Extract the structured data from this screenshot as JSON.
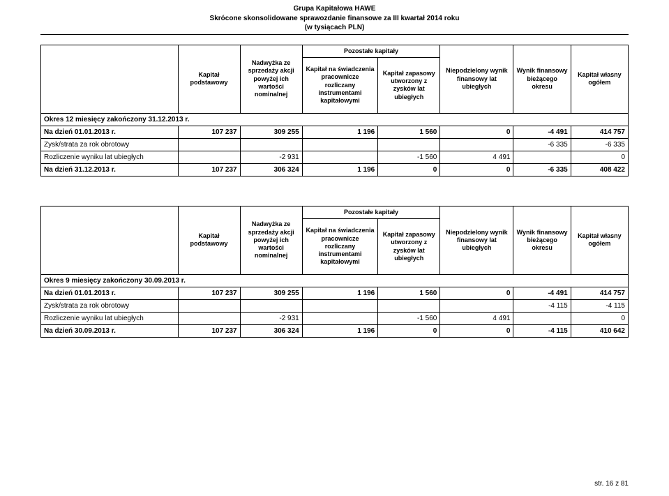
{
  "header": {
    "line1": "Grupa Kapitałowa HAWE",
    "line2": "Skrócone skonsolidowane sprawozdanie finansowe za III kwartał 2014 roku",
    "line3": "(w tysiącach PLN)"
  },
  "columns": {
    "c1": "Kapitał podstawowy",
    "c2": "Nadwyżka ze sprzedaży akcji powyżej ich wartości nominalnej",
    "group": "Pozostałe kapitały",
    "c3": "Kapitał na świadczenia pracownicze rozliczany instrumentami kapitałowymi",
    "c4": "Kapitał zapasowy utworzony z zysków lat ubiegłych",
    "c5": "Niepodzielony wynik finansowy lat ubiegłych",
    "c6": "Wynik finansowy bieżącego okresu",
    "c7": "Kapitał własny ogółem"
  },
  "table1": {
    "period": "Okres 12 miesięcy zakończony 31.12.2013 r.",
    "rows": [
      {
        "label": "Na dzień 01.01.2013 r.",
        "bold": true,
        "cells": [
          "107 237",
          "309 255",
          "1 196",
          "1 560",
          "0",
          "-4 491",
          "414 757"
        ]
      },
      {
        "label": "Zysk/strata za rok obrotowy",
        "bold": false,
        "cells": [
          "",
          "",
          "",
          "",
          "",
          "-6 335",
          "-6 335"
        ]
      },
      {
        "label": "Rozliczenie wyniku lat ubiegłych",
        "bold": false,
        "cells": [
          "",
          "-2 931",
          "",
          "-1 560",
          "4 491",
          "",
          "0"
        ]
      },
      {
        "label": "Na dzień 31.12.2013 r.",
        "bold": true,
        "cells": [
          "107 237",
          "306 324",
          "1 196",
          "0",
          "0",
          "-6 335",
          "408 422"
        ]
      }
    ]
  },
  "table2": {
    "period": "Okres 9 miesięcy zakończony 30.09.2013 r.",
    "rows": [
      {
        "label": "Na dzień 01.01.2013 r.",
        "bold": true,
        "cells": [
          "107 237",
          "309 255",
          "1 196",
          "1 560",
          "0",
          "-4 491",
          "414 757"
        ]
      },
      {
        "label": "Zysk/strata za rok obrotowy",
        "bold": false,
        "cells": [
          "",
          "",
          "",
          "",
          "",
          "-4 115",
          "-4 115"
        ]
      },
      {
        "label": "Rozliczenie wyniku lat ubiegłych",
        "bold": false,
        "cells": [
          "",
          "-2 931",
          "",
          "-1 560",
          "4 491",
          "",
          "0"
        ]
      },
      {
        "label": "Na dzień 30.09.2013 r.",
        "bold": true,
        "cells": [
          "107 237",
          "306 324",
          "1 196",
          "0",
          "0",
          "-4 115",
          "410 642"
        ]
      }
    ]
  },
  "footer": "str. 16 z 81"
}
